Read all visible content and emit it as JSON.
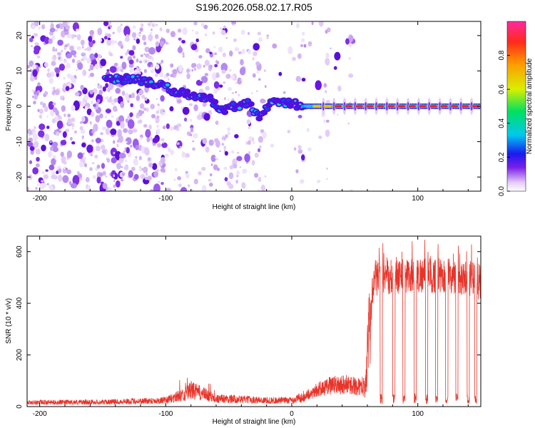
{
  "title": "S196.2026.058.02.17.R05",
  "colors": {
    "snr_line": "#e8342a",
    "spectrogram_low": "#c9a8f0",
    "spectrogram_mid": "#6a14e6",
    "spectrogram_high": "#e8203c"
  },
  "chart_data": [
    {
      "type": "heatmap",
      "title": "S196.2026.058.02.17.R05",
      "xlabel": "Height of straight line (km)",
      "ylabel": "Frequency (Hz)",
      "xlim": [
        -210,
        150
      ],
      "ylim": [
        -24,
        24
      ],
      "xticks": [
        -200,
        -100,
        0,
        100
      ],
      "yticks": [
        -20,
        -10,
        0,
        10,
        20
      ],
      "colorbar": {
        "label": "Normalized spectral amplitude",
        "range": [
          0,
          1
        ],
        "ticks": [
          "0.0",
          "0.2",
          "0.4",
          "0.6",
          "0.8"
        ]
      },
      "ridge": {
        "x": [
          -145,
          -135,
          -125,
          -115,
          -105,
          -95,
          -85,
          -75,
          -65,
          -55,
          -45,
          -35,
          -25,
          -15,
          -5,
          0,
          10,
          20,
          40,
          60,
          80,
          100,
          120,
          150
        ],
        "y": [
          8,
          7.5,
          8,
          7,
          6,
          4.5,
          3.5,
          2.5,
          2,
          -1,
          0,
          1,
          -3,
          2,
          1,
          0.8,
          0,
          0,
          0,
          0,
          0,
          0,
          0,
          0
        ]
      }
    },
    {
      "type": "line",
      "xlabel": "Height of straight line (km)",
      "ylabel": "SNR (10 * v/v)",
      "xlim": [
        -210,
        150
      ],
      "ylim": [
        0,
        660
      ],
      "xticks": [
        -200,
        -100,
        0,
        100
      ],
      "yticks": [
        0,
        200,
        400,
        600
      ],
      "series": [
        {
          "envelope_x": [
            -210,
            -150,
            -100,
            -85,
            -80,
            -70,
            -60,
            -40,
            -20,
            0,
            10,
            20,
            30,
            40,
            50,
            58,
            62,
            65,
            80,
            100,
            120,
            140,
            150
          ],
          "envelope_y": [
            20,
            22,
            30,
            60,
            80,
            60,
            40,
            35,
            30,
            30,
            50,
            80,
            100,
            110,
            100,
            90,
            300,
            500,
            500,
            510,
            505,
            500,
            480
          ],
          "dropouts_x": [
            71,
            81,
            89,
            98,
            107,
            115,
            123,
            131,
            140,
            146
          ]
        }
      ]
    }
  ]
}
